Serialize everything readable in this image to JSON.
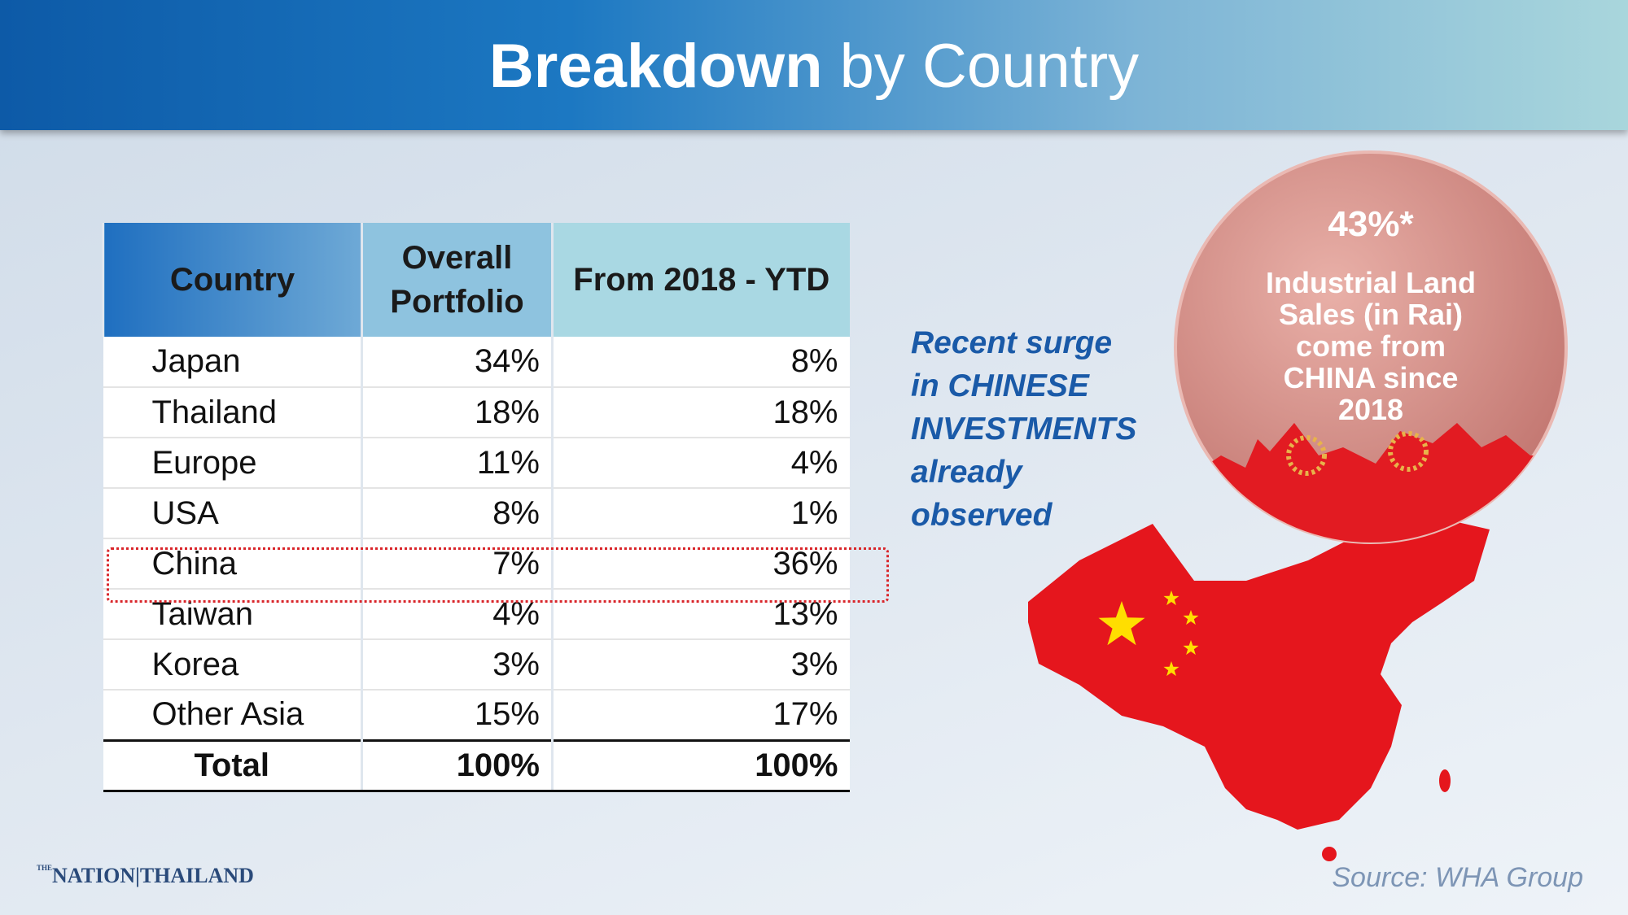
{
  "header": {
    "title_strong": "Breakdown",
    "title_light": "by Country"
  },
  "table": {
    "columns": [
      "Country",
      "Overall Portfolio",
      "From 2018 - YTD"
    ],
    "rows": [
      [
        "Japan",
        "34%",
        "8%"
      ],
      [
        "Thailand",
        "18%",
        "18%"
      ],
      [
        "Europe",
        "11%",
        "4%"
      ],
      [
        "USA",
        "8%",
        "1%"
      ],
      [
        "China",
        "7%",
        "36%"
      ],
      [
        "Taiwan",
        "4%",
        "13%"
      ],
      [
        "Korea",
        "3%",
        "3%"
      ],
      [
        "Other Asia",
        "15%",
        "17%"
      ]
    ],
    "total": [
      "Total",
      "100%",
      "100%"
    ]
  },
  "callout": {
    "lines": [
      "Recent surge",
      "in CHINESE",
      "INVESTMENTS",
      "already",
      "observed"
    ]
  },
  "bubble": {
    "value": "43%*",
    "lines": [
      "Industrial Land",
      "Sales (in Rai)",
      "come from",
      "CHINA since",
      "2018"
    ]
  },
  "logo": {
    "small": "THE",
    "text": "NATION|THAILAND"
  },
  "source": "Source: WHA Group"
}
